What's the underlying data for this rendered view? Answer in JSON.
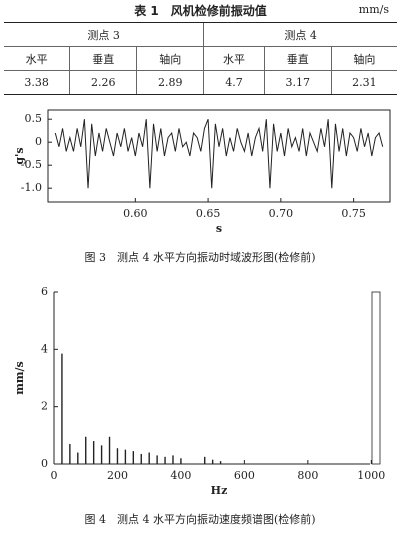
{
  "table": {
    "title": "表 1　风机检修前振动值",
    "unit": "mm/s",
    "groups": [
      "测点 3",
      "测点 4"
    ],
    "columns": [
      "水平",
      "垂直",
      "轴向",
      "水平",
      "垂直",
      "轴向"
    ],
    "rows": [
      [
        3.38,
        2.26,
        2.89,
        4.7,
        3.17,
        2.31
      ]
    ]
  },
  "chart_data": [
    {
      "type": "line",
      "caption": "图 3　测点 4 水平方向振动时域波形图(检修前)",
      "xlabel": "s",
      "ylabel": "g's",
      "color": "#222222",
      "xlim": [
        0.54,
        0.775
      ],
      "ylim": [
        -1.3,
        0.7
      ],
      "xticks": [
        {
          "value": 0.6,
          "label": "0.60"
        },
        0.65,
        {
          "value": 0.7,
          "label": "0.70"
        },
        0.75
      ],
      "yticks": [
        0.5,
        0,
        -0.5,
        {
          "value": -1,
          "label": "-1.0"
        }
      ],
      "x": [
        0.545,
        0.5475,
        0.55,
        0.5525,
        0.555,
        0.5575,
        0.56,
        0.5625,
        0.565,
        0.5675,
        0.57,
        0.5725,
        0.575,
        0.5775,
        0.58,
        0.5825,
        0.585,
        0.5875,
        0.59,
        0.5925,
        0.595,
        0.5975,
        0.6,
        0.6025,
        0.605,
        0.6075,
        0.61,
        0.6125,
        0.615,
        0.6175,
        0.62,
        0.6225,
        0.625,
        0.6275,
        0.63,
        0.6325,
        0.635,
        0.6375,
        0.64,
        0.6425,
        0.645,
        0.6475,
        0.65,
        0.6525,
        0.655,
        0.6575,
        0.66,
        0.6625,
        0.665,
        0.6675,
        0.67,
        0.6725,
        0.675,
        0.6775,
        0.68,
        0.6825,
        0.685,
        0.6875,
        0.69,
        0.6925,
        0.695,
        0.6975,
        0.7,
        0.7025,
        0.705,
        0.7075,
        0.71,
        0.7125,
        0.715,
        0.7175,
        0.72,
        0.7225,
        0.725,
        0.7275,
        0.73,
        0.7325,
        0.735,
        0.7375,
        0.74,
        0.7425,
        0.745,
        0.7475,
        0.75,
        0.7525,
        0.755,
        0.7575,
        0.76,
        0.7625,
        0.765,
        0.7675,
        0.77
      ],
      "values": [
        0.2,
        -0.1,
        0.3,
        -0.2,
        0.1,
        -0.2,
        0.3,
        -0.1,
        0.5,
        -1.0,
        0.4,
        -0.3,
        0.2,
        -0.2,
        0.3,
        0.0,
        -0.3,
        0.2,
        -0.1,
        0.3,
        -0.2,
        0.1,
        -0.3,
        0.2,
        -0.1,
        0.5,
        -1.0,
        0.4,
        -0.2,
        0.3,
        -0.3,
        0.1,
        0.2,
        -0.2,
        0.3,
        -0.1,
        0.0,
        -0.3,
        0.2,
        0.1,
        -0.2,
        0.3,
        0.5,
        -1.0,
        0.4,
        -0.1,
        0.3,
        -0.3,
        0.1,
        -0.2,
        0.3,
        0.0,
        -0.2,
        0.2,
        -0.3,
        0.1,
        0.3,
        -0.2,
        0.5,
        -1.0,
        0.4,
        -0.2,
        0.2,
        -0.3,
        0.3,
        -0.1,
        0.1,
        -0.2,
        0.3,
        -0.3,
        0.2,
        0.0,
        -0.2,
        0.3,
        -0.1,
        0.5,
        -1.0,
        0.4,
        -0.2,
        0.3,
        -0.3,
        0.2,
        0.1,
        -0.2,
        0.3,
        -0.1,
        0.2,
        -0.3,
        0.1,
        0.2,
        -0.1
      ]
    },
    {
      "type": "stem",
      "caption": "图 4　测点 4 水平方向振动速度频谱图(检修前)",
      "xlabel": "Hz",
      "ylabel": "mm/s",
      "color": "#222222",
      "xlim": [
        0,
        1040
      ],
      "ylim": [
        0,
        6
      ],
      "xticks": [
        0,
        200,
        400,
        600,
        800,
        1000
      ],
      "yticks": [
        0,
        2,
        4,
        6
      ],
      "x": [
        25,
        50,
        75,
        100,
        125,
        150,
        175,
        200,
        225,
        250,
        275,
        300,
        325,
        350,
        375,
        400,
        475,
        500,
        525
      ],
      "values": [
        3.85,
        0.7,
        0.4,
        0.95,
        0.8,
        0.65,
        0.95,
        0.55,
        0.5,
        0.45,
        0.35,
        0.4,
        0.3,
        0.25,
        0.3,
        0.2,
        0.25,
        0.15,
        0.1
      ]
    }
  ]
}
